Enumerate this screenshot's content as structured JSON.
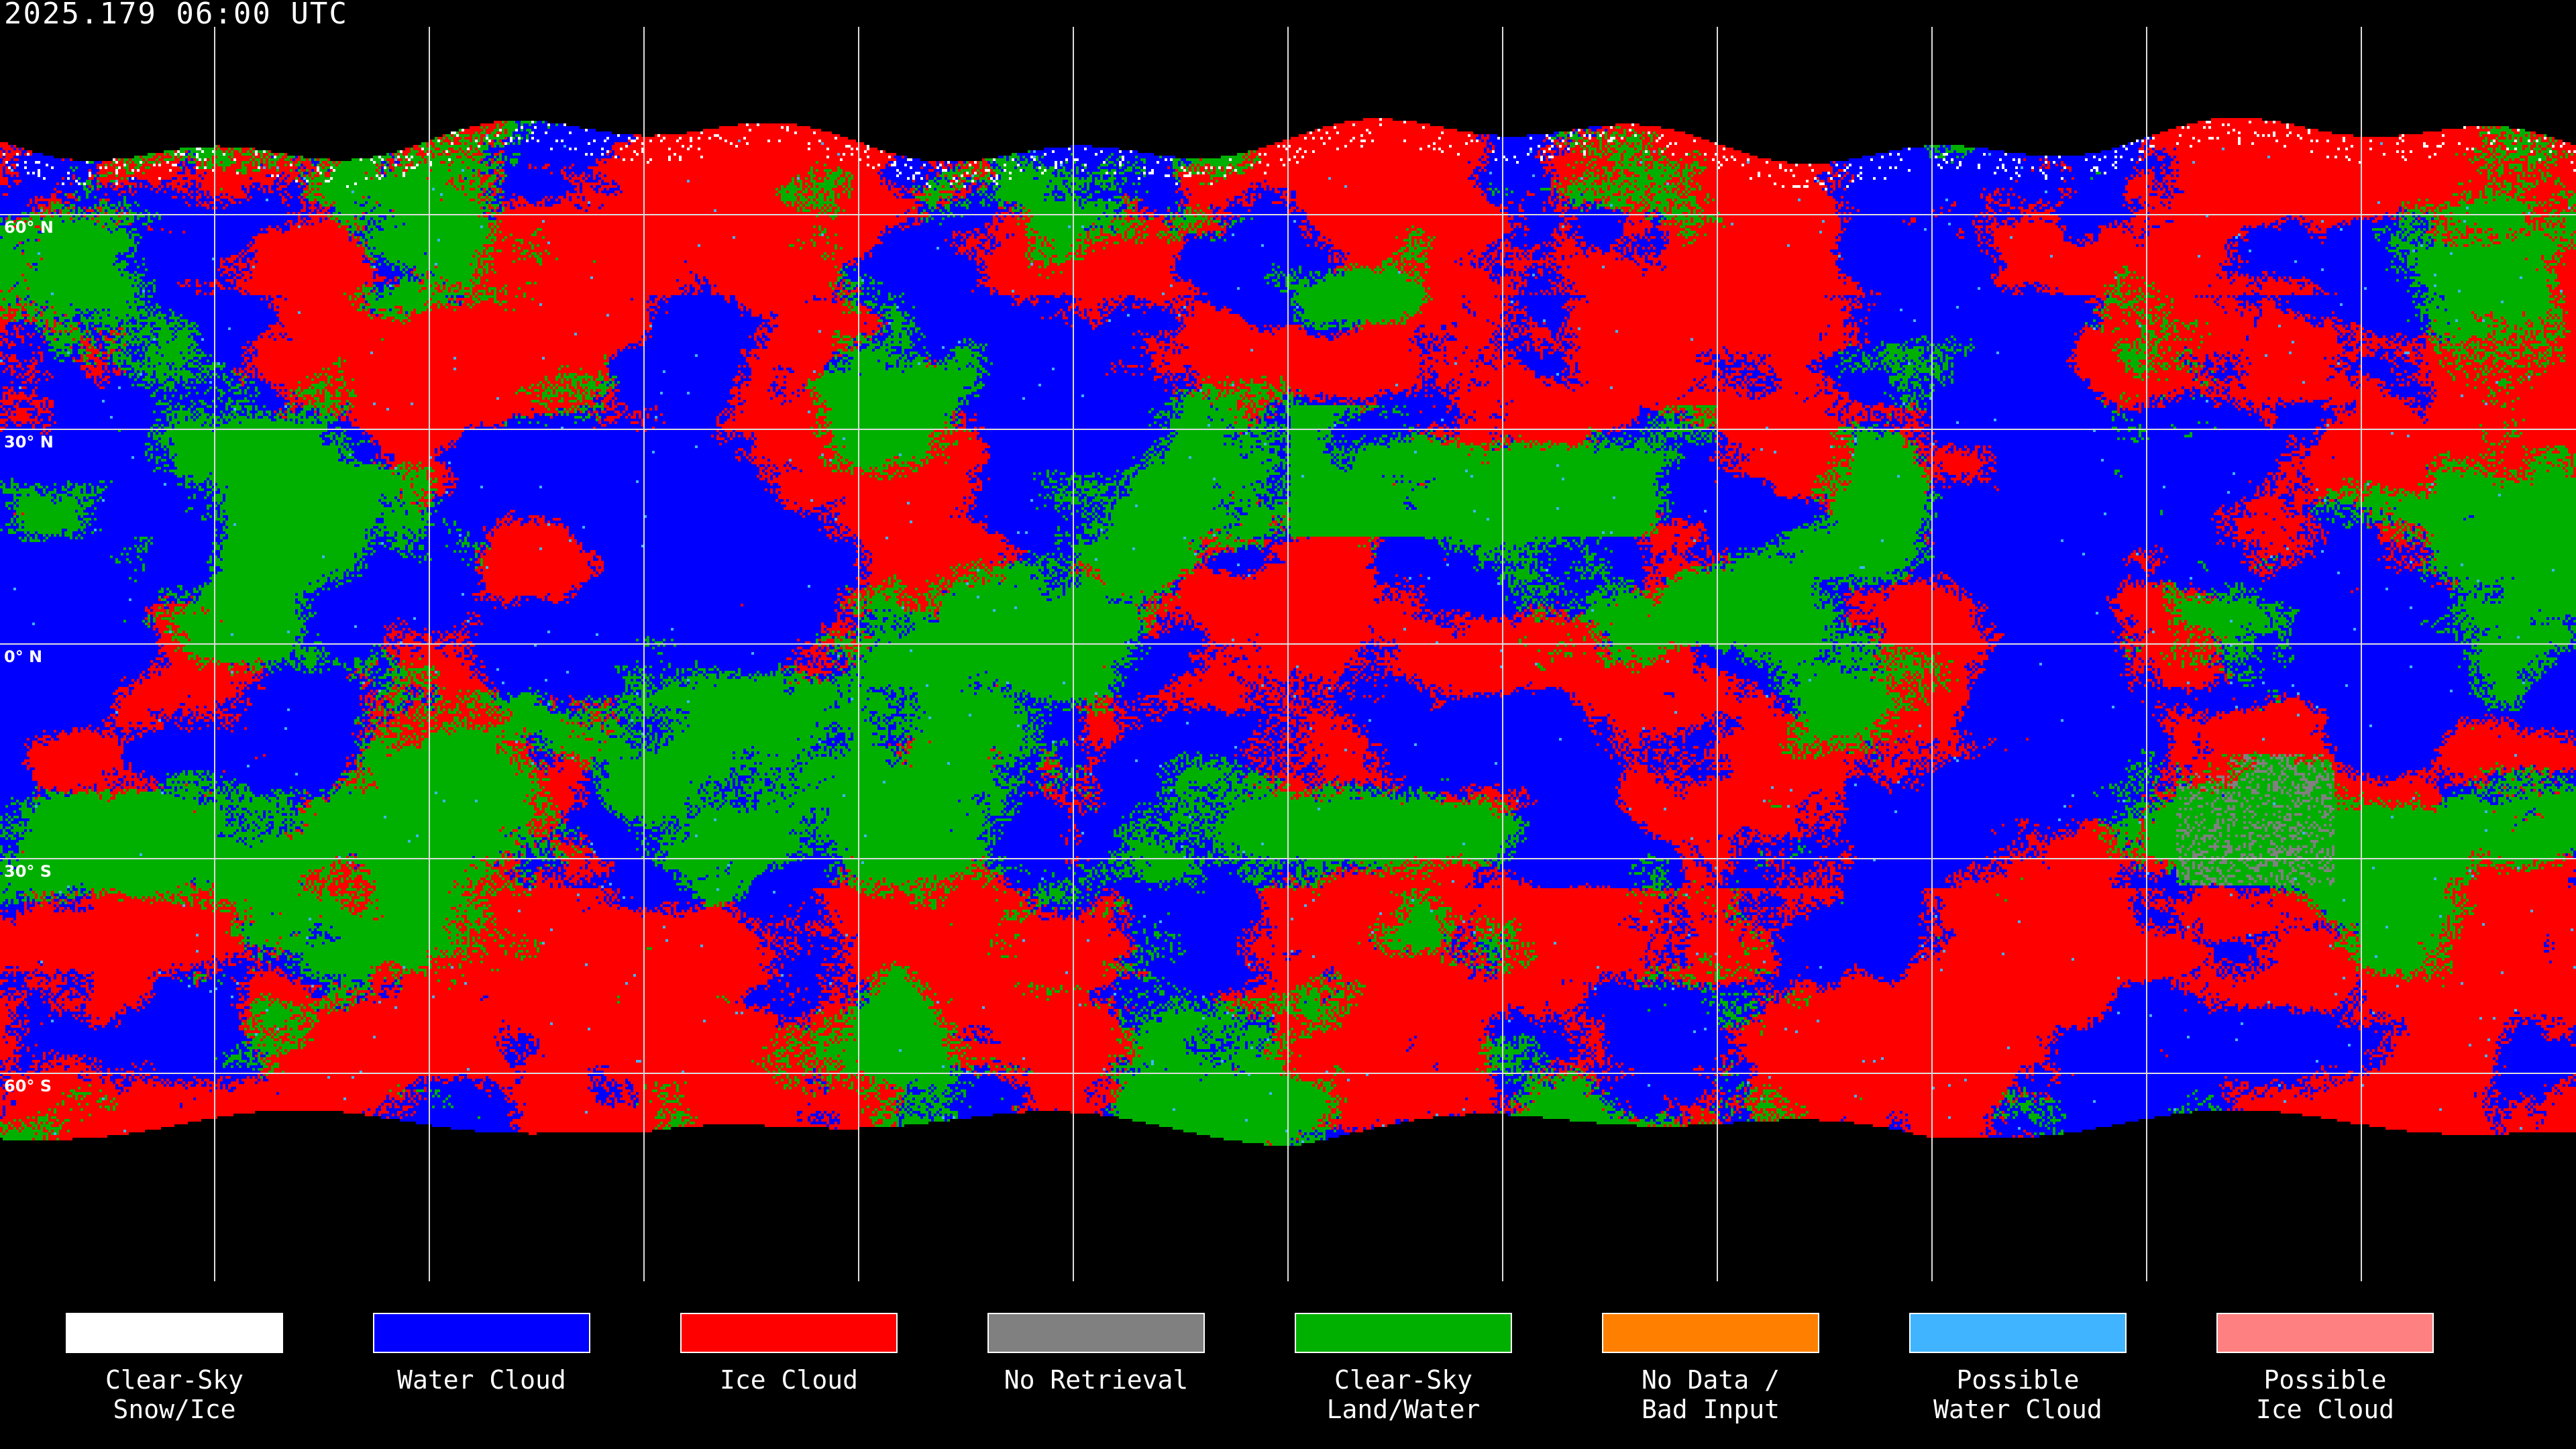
{
  "title": "2025.179 06:00 UTC",
  "latitude_labels": [
    "60° N",
    "30° N",
    "0° N",
    "30° S",
    "60° S"
  ],
  "legend": [
    {
      "label": "Clear-Sky\nSnow/Ice",
      "color": "#ffffff"
    },
    {
      "label": "Water Cloud",
      "color": "#0000ff"
    },
    {
      "label": "Ice Cloud",
      "color": "#ff0000"
    },
    {
      "label": "No Retrieval",
      "color": "#808080"
    },
    {
      "label": "Clear-Sky\nLand/Water",
      "color": "#00b000"
    },
    {
      "label": "No Data /\nBad Input",
      "color": "#ff8000"
    },
    {
      "label": "Possible\nWater Cloud",
      "color": "#40b4ff"
    },
    {
      "label": "Possible\nIce Cloud",
      "color": "#ff8080"
    }
  ]
}
